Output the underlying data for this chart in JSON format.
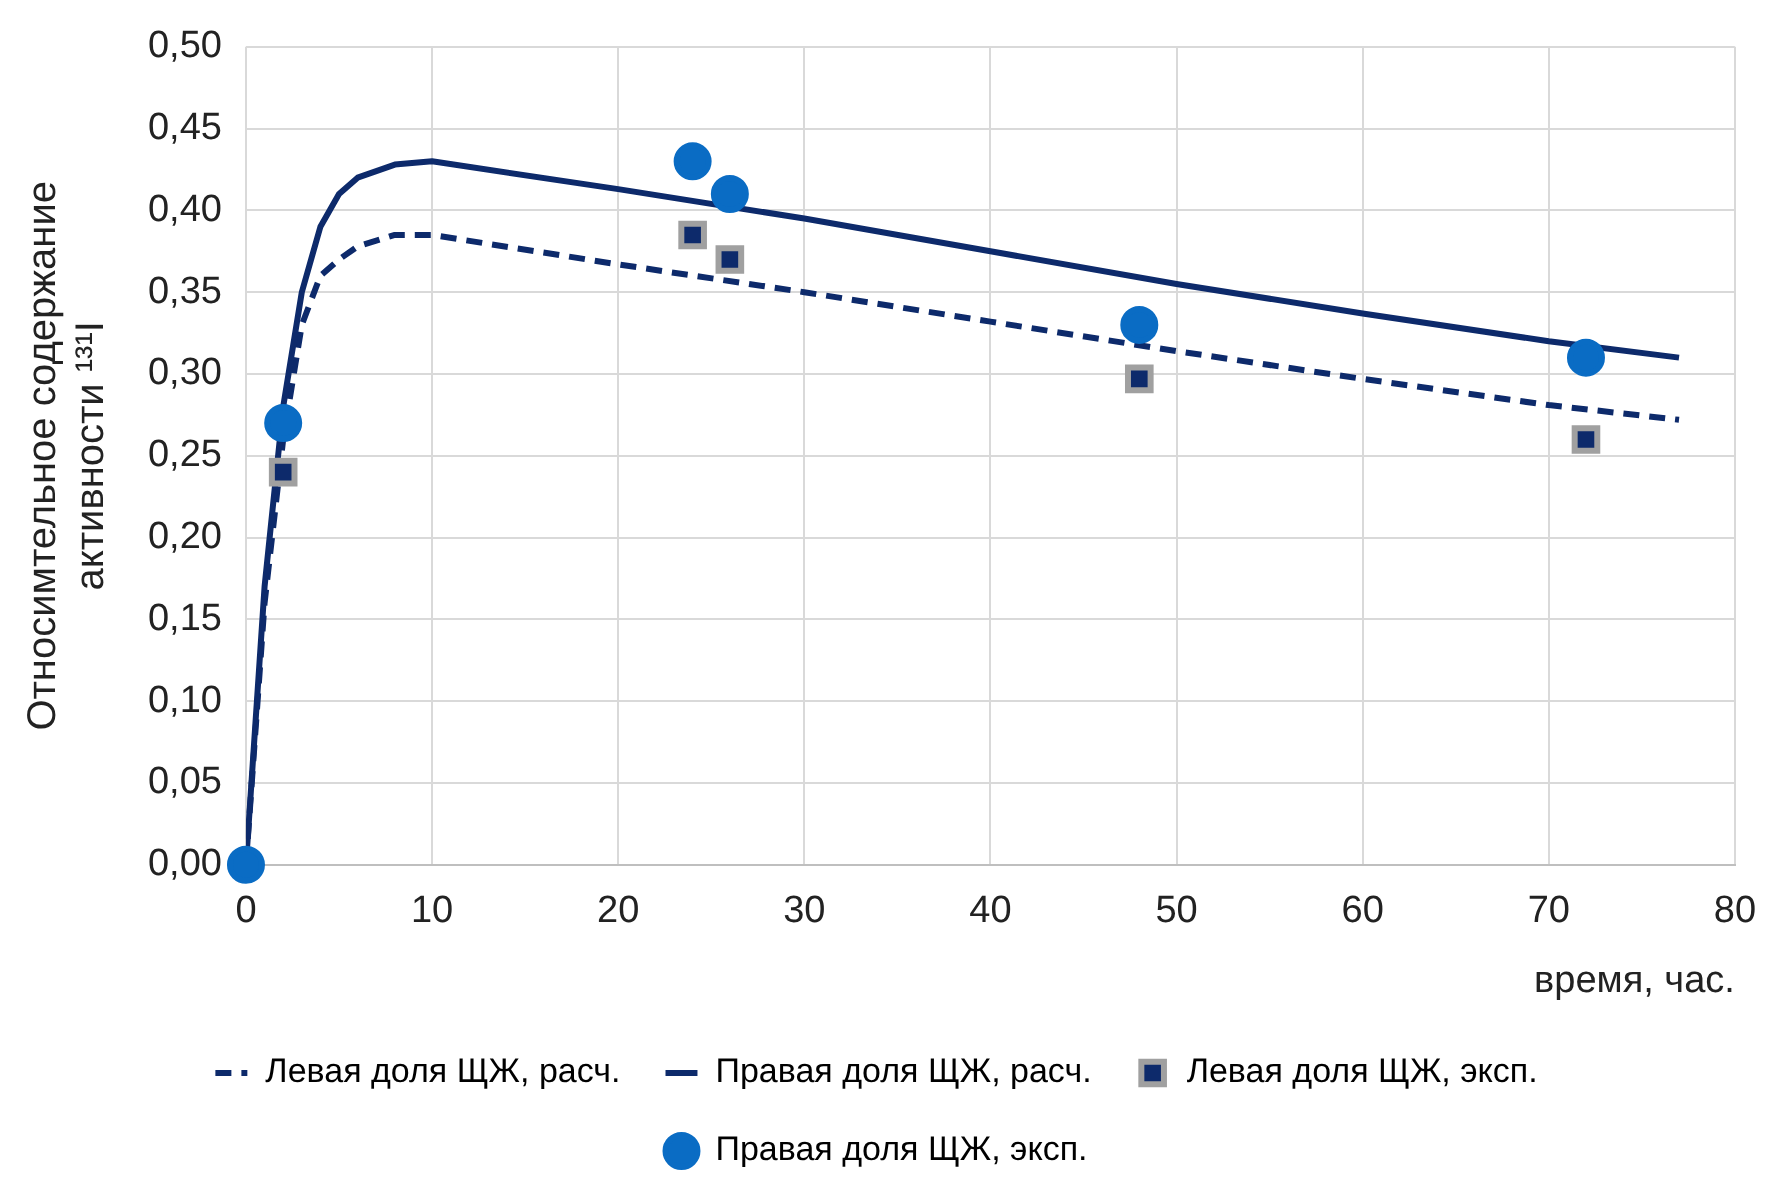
{
  "chart_data": {
    "type": "line",
    "xlabel": "время, час.",
    "ylabel": "Относимтельное содержание активности ¹³¹I",
    "xlim": [
      0,
      80
    ],
    "xticks": [
      0,
      10,
      20,
      30,
      40,
      50,
      60,
      70,
      80
    ],
    "ylim": [
      0,
      0.5
    ],
    "yticks": [
      {
        "value": 0,
        "label": "0,00"
      },
      {
        "value": 0.05,
        "label": "0,05"
      },
      {
        "value": 0.1,
        "label": "0,10"
      },
      {
        "value": 0.15,
        "label": "0,15"
      },
      {
        "value": 0.2,
        "label": "0,20"
      },
      {
        "value": 0.25,
        "label": "0,25"
      },
      {
        "value": 0.3,
        "label": "0,30"
      },
      {
        "value": 0.35,
        "label": "0,35"
      },
      {
        "value": 0.4,
        "label": "0,40"
      },
      {
        "value": 0.45,
        "label": "0,45"
      },
      {
        "value": 0.5,
        "label": "0,50"
      }
    ],
    "grid": true,
    "legend": "bottom",
    "series": [
      {
        "name": "Левая доля ЩЖ, расч.",
        "color": "#0d2a6b",
        "line_style": "dashed",
        "marker": "none",
        "x": [
          0,
          1,
          2,
          3,
          4,
          5,
          6,
          8,
          10,
          20,
          30,
          40,
          50,
          60,
          70,
          77
        ],
        "values": [
          0,
          0.16,
          0.26,
          0.33,
          0.36,
          0.37,
          0.378,
          0.385,
          0.385,
          0.367,
          0.35,
          0.332,
          0.314,
          0.297,
          0.281,
          0.272
        ]
      },
      {
        "name": "Правая доля ЩЖ, расч.",
        "color": "#0d2a6b",
        "line_style": "solid",
        "marker": "none",
        "x": [
          0,
          1,
          2,
          3,
          4,
          5,
          6,
          8,
          10,
          20,
          30,
          40,
          50,
          60,
          70,
          77
        ],
        "values": [
          0,
          0.17,
          0.28,
          0.35,
          0.39,
          0.41,
          0.42,
          0.428,
          0.43,
          0.413,
          0.395,
          0.375,
          0.355,
          0.337,
          0.32,
          0.31
        ]
      },
      {
        "name": "Левая доля ЩЖ, эксп.",
        "type": "scatter",
        "color": "#0d2a6b",
        "marker": "square",
        "x": [
          2,
          24,
          26,
          48,
          72
        ],
        "values": [
          0.24,
          0.385,
          0.37,
          0.297,
          0.26
        ]
      },
      {
        "name": "Правая доля ЩЖ, эксп.",
        "type": "scatter",
        "color": "#0a6cc4",
        "marker": "circle",
        "x": [
          0,
          2,
          24,
          26,
          48,
          72
        ],
        "values": [
          0,
          0.27,
          0.43,
          0.41,
          0.33,
          0.31
        ]
      }
    ]
  }
}
